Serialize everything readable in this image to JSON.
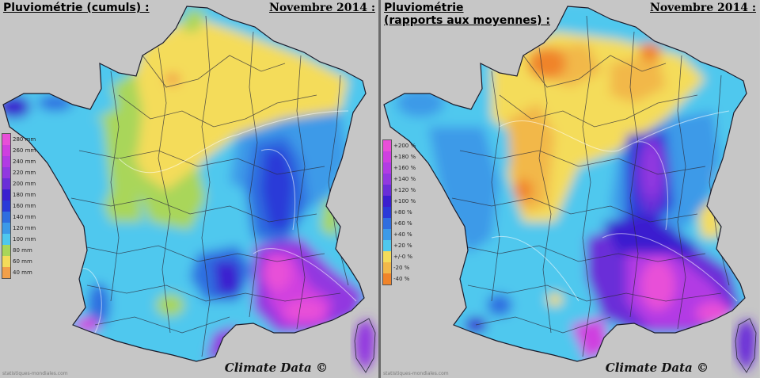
{
  "left": {
    "title": "Pluviométrie (cumuls) :",
    "date": "Novembre 2014 :",
    "signature": "Climate Data ©",
    "watermark": "statistiques-mondiales.com",
    "legend": [
      {
        "label": "280 mm",
        "color": "#e84fd8"
      },
      {
        "label": "260 mm",
        "color": "#cf3fe0"
      },
      {
        "label": "240 mm",
        "color": "#b23be4"
      },
      {
        "label": "220 mm",
        "color": "#9238e0"
      },
      {
        "label": "200 mm",
        "color": "#6a2ed8"
      },
      {
        "label": "180 mm",
        "color": "#3a1fcf"
      },
      {
        "label": "160 mm",
        "color": "#2a3ad8"
      },
      {
        "label": "140 mm",
        "color": "#2f6ee0"
      },
      {
        "label": "120 mm",
        "color": "#3c9ae8"
      },
      {
        "label": "100 mm",
        "color": "#4fc8ee"
      },
      {
        "label": "80 mm",
        "color": "#a9d65a"
      },
      {
        "label": "60 mm",
        "color": "#f4dc5a"
      },
      {
        "label": "40 mm",
        "color": "#f2a04a"
      }
    ]
  },
  "right": {
    "title_line1": "Pluviométrie",
    "title_line2": "(rapports aux moyennes) :",
    "date": "Novembre 2014 :",
    "signature": "Climate Data ©",
    "watermark": "statistiques-mondiales.com",
    "legend": [
      {
        "label": "+200 %",
        "color": "#e84fd8"
      },
      {
        "label": "+180 %",
        "color": "#cf3fe0"
      },
      {
        "label": "+160 %",
        "color": "#b23be4"
      },
      {
        "label": "+140 %",
        "color": "#9238e0"
      },
      {
        "label": "+120 %",
        "color": "#6a2ed8"
      },
      {
        "label": "+100 %",
        "color": "#3a1fcf"
      },
      {
        "label": "+80 %",
        "color": "#2a3ad8"
      },
      {
        "label": "+60 %",
        "color": "#2f6ee0"
      },
      {
        "label": "+40 %",
        "color": "#3c9ae8"
      },
      {
        "label": "+20 %",
        "color": "#4fc8ee"
      },
      {
        "label": "+/-0 %",
        "color": "#f4dc5a"
      },
      {
        "label": "-20 %",
        "color": "#f2b84a"
      },
      {
        "label": "-40 %",
        "color": "#f0842a"
      }
    ]
  }
}
